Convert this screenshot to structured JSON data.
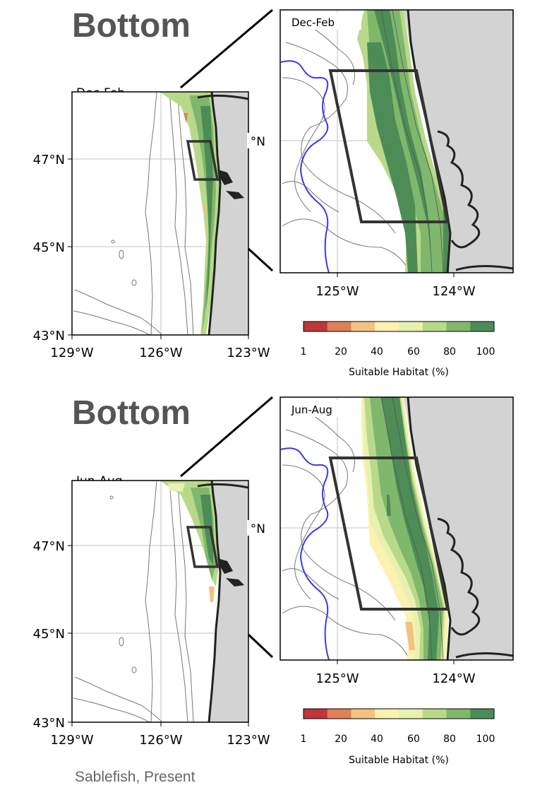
{
  "panels": [
    {
      "title": "Bottom",
      "season": "Dec-Feb",
      "overview": {
        "lat_ticks": [
          "47°N",
          "45°N",
          "43°N"
        ],
        "lon_ticks": [
          "129°W",
          "126°W",
          "123°W"
        ]
      },
      "inset": {
        "season": "Dec-Feb",
        "lat_tick": "°N",
        "lon_ticks": [
          "125°W",
          "124°W"
        ]
      },
      "colorbar": {
        "ticks": [
          "1",
          "20",
          "40",
          "60",
          "80",
          "100"
        ],
        "label": "Suitable Habitat (%)"
      }
    },
    {
      "title": "Bottom",
      "season": "Jun-Aug",
      "overview": {
        "lat_ticks": [
          "47°N",
          "45°N",
          "43°N"
        ],
        "lon_ticks": [
          "129°W",
          "126°W",
          "123°W"
        ]
      },
      "inset": {
        "season": "Jun-Aug",
        "lat_tick": "°N",
        "lon_ticks": [
          "125°W",
          "124°W"
        ]
      },
      "colorbar": {
        "ticks": [
          "1",
          "20",
          "40",
          "60",
          "80",
          "100"
        ],
        "label": "Suitable Habitat (%)"
      }
    }
  ],
  "colormap": [
    "#c0363c",
    "#e0805a",
    "#f2c37e",
    "#fbf2b2",
    "#e8f1b0",
    "#b9d98a",
    "#7fb86c",
    "#4d8c56"
  ],
  "land_color": "#d3d3d3",
  "isobath_color": "#777777",
  "offshore_line_color": "#3a3ae6",
  "caption": "Sablefish, Present"
}
